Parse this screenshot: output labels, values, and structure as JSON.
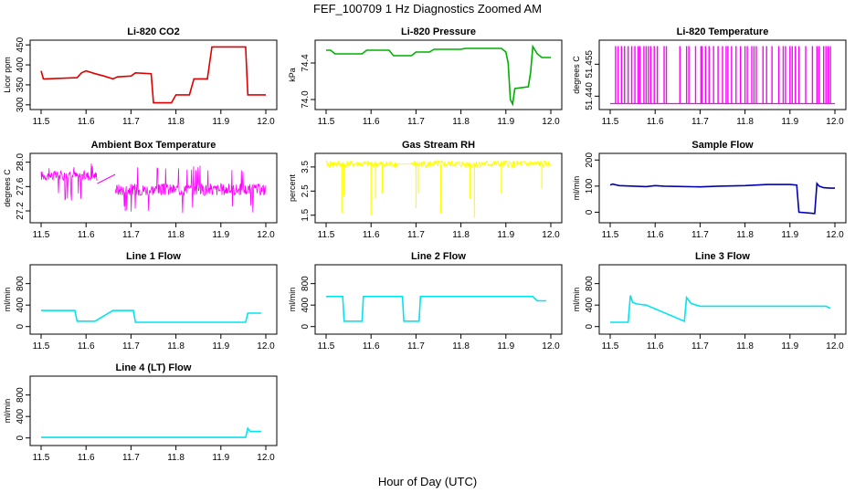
{
  "figure": {
    "title": "FEF_100709  1 Hz Diagnostics Zoomed AM",
    "xlabel": "Hour of Day (UTC)"
  },
  "chart_data": [
    {
      "id": "co2",
      "type": "line",
      "title": "Li-820 CO2",
      "ylabel": "Licor ppm",
      "color": "#e00000",
      "xlim": [
        11.5,
        12.0
      ],
      "ylim": [
        295,
        455
      ],
      "yticks": [
        300,
        350,
        400,
        450
      ],
      "x": [
        11.5,
        11.505,
        11.51,
        11.58,
        11.59,
        11.6,
        11.62,
        11.64,
        11.66,
        11.67,
        11.7,
        11.71,
        11.745,
        11.75,
        11.79,
        11.8,
        11.83,
        11.84,
        11.87,
        11.88,
        11.955,
        11.96,
        11.97,
        12.0
      ],
      "y": [
        385,
        365,
        365,
        368,
        380,
        385,
        378,
        372,
        365,
        370,
        372,
        380,
        378,
        305,
        305,
        325,
        325,
        365,
        365,
        445,
        445,
        325,
        325,
        325
      ]
    },
    {
      "id": "pressure",
      "type": "line",
      "title": "Li-820 Pressure",
      "ylabel": "kPa",
      "color": "#00b000",
      "xlim": [
        11.5,
        12.0
      ],
      "ylim": [
        73.92,
        74.62
      ],
      "yticks": [
        74.0,
        74.4
      ],
      "ytick_labels": [
        "74.0",
        "74.4"
      ],
      "x": [
        11.5,
        11.51,
        11.52,
        11.58,
        11.59,
        11.64,
        11.65,
        11.69,
        11.7,
        11.73,
        11.74,
        11.8,
        11.81,
        11.85,
        11.86,
        11.89,
        11.9,
        11.905,
        11.91,
        11.915,
        11.92,
        11.95,
        11.955,
        11.96,
        11.97,
        11.98,
        12.0
      ],
      "y": [
        74.54,
        74.54,
        74.5,
        74.5,
        74.54,
        74.54,
        74.48,
        74.48,
        74.52,
        74.52,
        74.55,
        74.55,
        74.56,
        74.56,
        74.56,
        74.56,
        74.52,
        74.4,
        74.0,
        73.95,
        74.12,
        74.14,
        74.3,
        74.58,
        74.5,
        74.46,
        74.46
      ]
    },
    {
      "id": "li820_temp",
      "type": "line",
      "title": "Li-820 Temperature",
      "ylabel": "degrees C",
      "color": "#ff00ff",
      "xlim": [
        11.5,
        12.0
      ],
      "ylim": [
        51.435,
        51.465
      ],
      "yticks": [
        51.44,
        51.455
      ],
      "ytick_labels": [
        "51.440",
        "51.455"
      ],
      "baseline": 51.4365,
      "high": 51.4635,
      "spikes": [
        11.512,
        11.518,
        11.525,
        11.532,
        11.54,
        11.548,
        11.555,
        11.562,
        11.566,
        11.575,
        11.58,
        11.585,
        11.59,
        11.598,
        11.605,
        11.62,
        11.625,
        11.655,
        11.67,
        11.675,
        11.69,
        11.702,
        11.705,
        11.712,
        11.72,
        11.73,
        11.74,
        11.75,
        11.758,
        11.762,
        11.77,
        11.78,
        11.79,
        11.8,
        11.805,
        11.815,
        11.82,
        11.825,
        11.84,
        11.848,
        11.86,
        11.875,
        11.885,
        11.89,
        11.9,
        11.905,
        11.912,
        11.92,
        11.935,
        11.95,
        11.96,
        11.965,
        11.975,
        11.98,
        11.985,
        11.99
      ]
    },
    {
      "id": "box_temp",
      "type": "line",
      "title": "Ambient Box Temperature",
      "ylabel": "degrees C",
      "color": "#ff00ff",
      "xlim": [
        11.5,
        12.0
      ],
      "ylim": [
        27.05,
        28.1
      ],
      "yticks": [
        27.2,
        27.6,
        28.0
      ],
      "ytick_labels": [
        "27.2",
        "27.6",
        "28.0"
      ],
      "segments": [
        {
          "x0": 11.5,
          "x1": 11.625,
          "center": 27.78,
          "spread": 0.08,
          "spike_low": 27.35,
          "spike_high": 28.02
        },
        {
          "x0": 11.665,
          "x1": 12.0,
          "center": 27.55,
          "spread": 0.1,
          "spike_low": 27.15,
          "spike_high": 27.95
        }
      ],
      "gap_line": {
        "x": [
          11.625,
          11.665
        ],
        "y": [
          27.65,
          27.8
        ]
      }
    },
    {
      "id": "rh",
      "type": "line",
      "title": "Gas Stream RH",
      "ylabel": "percent",
      "color": "#ffff00",
      "xlim": [
        11.5,
        12.0
      ],
      "ylim": [
        1.3,
        3.95
      ],
      "yticks": [
        1.5,
        2.5,
        3.5
      ],
      "ytick_labels": [
        "1.5",
        "2.5",
        "3.5"
      ],
      "base": 3.62,
      "spread": 0.14,
      "gap": [
        11.66,
        11.69
      ],
      "dips": [
        [
          11.535,
          1.6
        ],
        [
          11.54,
          2.3
        ],
        [
          11.6,
          1.5
        ],
        [
          11.61,
          2.2
        ],
        [
          11.625,
          2.4
        ],
        [
          11.7,
          1.8
        ],
        [
          11.705,
          2.4
        ],
        [
          11.755,
          1.6
        ],
        [
          11.82,
          2.2
        ],
        [
          11.83,
          1.4
        ],
        [
          11.89,
          2.4
        ],
        [
          11.98,
          2.6
        ]
      ]
    },
    {
      "id": "sample_flow",
      "type": "line",
      "title": "Sample Flow",
      "ylabel": "ml/min",
      "color": "#0000b0",
      "xlim": [
        11.5,
        12.0
      ],
      "ylim": [
        -30,
        215
      ],
      "yticks": [
        0,
        100,
        200
      ],
      "x": [
        11.5,
        11.505,
        11.52,
        11.58,
        11.6,
        11.62,
        11.7,
        11.74,
        11.8,
        11.85,
        11.9,
        11.915,
        11.92,
        11.955,
        11.96,
        11.965,
        11.975,
        11.99,
        12.0
      ],
      "y": [
        104,
        108,
        102,
        98,
        102,
        100,
        97,
        100,
        102,
        106,
        106,
        104,
        0,
        -5,
        110,
        100,
        94,
        92,
        92
      ]
    },
    {
      "id": "line1",
      "type": "line",
      "title": "Line 1 Flow",
      "ylabel": "ml/min",
      "color": "#00e5ee",
      "xlim": [
        11.5,
        12.0
      ],
      "ylim": [
        -90,
        1100
      ],
      "yticks": [
        0,
        400,
        800
      ],
      "x": [
        11.5,
        11.575,
        11.58,
        11.62,
        11.66,
        11.705,
        11.71,
        11.955,
        11.96,
        11.99
      ],
      "y": [
        300,
        300,
        100,
        100,
        300,
        300,
        80,
        80,
        250,
        250
      ]
    },
    {
      "id": "line2",
      "type": "line",
      "title": "Line 2 Flow",
      "ylabel": "ml/min",
      "color": "#00e5ee",
      "xlim": [
        11.5,
        12.0
      ],
      "ylim": [
        -90,
        1100
      ],
      "yticks": [
        0,
        400,
        800
      ],
      "x": [
        11.5,
        11.537,
        11.54,
        11.58,
        11.583,
        11.67,
        11.673,
        11.707,
        11.71,
        11.96,
        11.97,
        11.99
      ],
      "y": [
        560,
        560,
        100,
        100,
        560,
        560,
        100,
        100,
        560,
        560,
        480,
        480
      ]
    },
    {
      "id": "line3",
      "type": "line",
      "title": "Line 3 Flow",
      "ylabel": "ml/min",
      "color": "#00e5ee",
      "xlim": [
        11.5,
        12.0
      ],
      "ylim": [
        -90,
        1100
      ],
      "yticks": [
        0,
        400,
        800
      ],
      "x": [
        11.5,
        11.54,
        11.545,
        11.55,
        11.56,
        11.58,
        11.665,
        11.67,
        11.68,
        11.7,
        11.98,
        11.99
      ],
      "y": [
        80,
        80,
        580,
        450,
        420,
        400,
        100,
        540,
        430,
        380,
        380,
        340
      ]
    },
    {
      "id": "line4",
      "type": "line",
      "title": "Line 4 (LT) Flow",
      "ylabel": "ml/min",
      "color": "#00e5ee",
      "xlim": [
        11.5,
        12.0
      ],
      "ylim": [
        -90,
        1100
      ],
      "yticks": [
        0,
        400,
        800
      ],
      "x": [
        11.5,
        11.955,
        11.96,
        11.965,
        11.99
      ],
      "y": [
        10,
        10,
        180,
        120,
        120
      ]
    }
  ],
  "x_ticks": [
    11.5,
    11.6,
    11.7,
    11.8,
    11.9,
    12.0
  ],
  "x_tick_labels": [
    "11.5",
    "11.6",
    "11.7",
    "11.8",
    "11.9",
    "12.0"
  ]
}
